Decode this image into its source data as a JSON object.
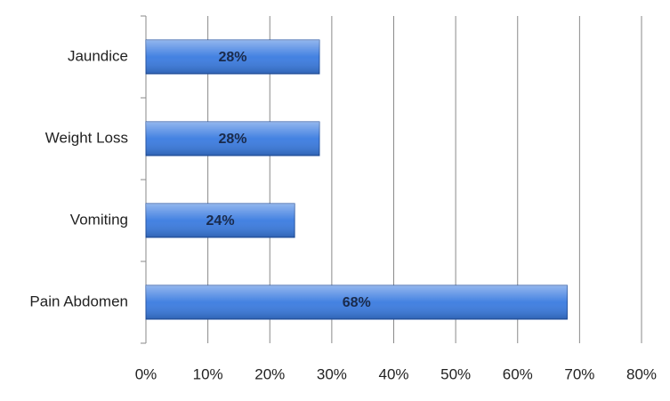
{
  "chart_data": {
    "type": "hbar",
    "categories": [
      "Jaundice",
      "Weight Loss",
      "Vomiting",
      "Pain Abdomen"
    ],
    "values": [
      28,
      28,
      24,
      68
    ],
    "value_labels": [
      "28%",
      "28%",
      "24%",
      "68%"
    ],
    "color": "#3a7be0",
    "xlim": [
      0,
      80
    ],
    "xticks": [
      {
        "value": 0,
        "label": "0%"
      },
      {
        "value": 10,
        "label": "10%"
      },
      {
        "value": 20,
        "label": "20%"
      },
      {
        "value": 30,
        "label": "30%"
      },
      {
        "value": 40,
        "label": "40%"
      },
      {
        "value": 50,
        "label": "50%"
      },
      {
        "value": 60,
        "label": "60%"
      },
      {
        "value": 70,
        "label": "70%"
      },
      {
        "value": 80,
        "label": "80%"
      }
    ],
    "grid": true
  }
}
